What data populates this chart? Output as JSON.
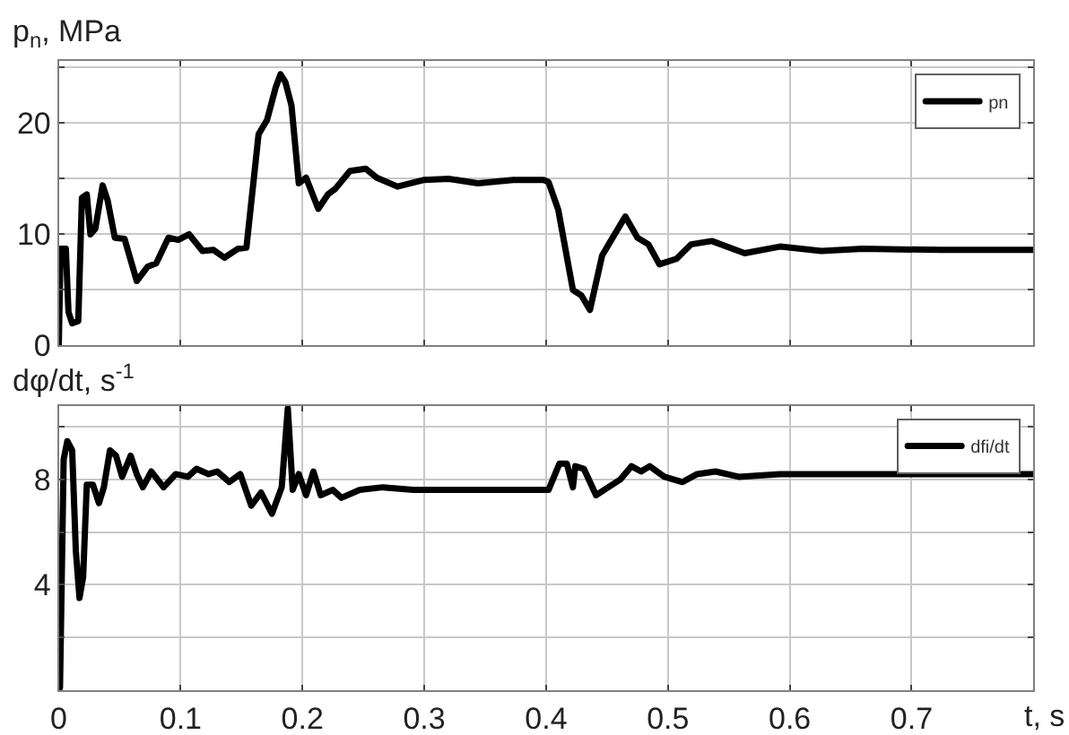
{
  "chart_data": [
    {
      "type": "line",
      "ylabel": "p$_{n}$, MPa",
      "xlim": [
        0,
        0.8
      ],
      "ylim": [
        0,
        25.6
      ],
      "tick_labels": "y",
      "grid": true,
      "legend": "top right",
      "line_style": "solid",
      "marker": "none",
      "xticks": [
        0,
        0.1,
        0.2,
        0.3,
        0.4,
        0.5,
        0.6,
        0.7
      ],
      "yticks": [
        0,
        {
          "value": 5,
          "label": null
        },
        10,
        {
          "value": 15,
          "label": null
        },
        20,
        {
          "value": 25,
          "label": null
        }
      ],
      "x": [
        0,
        0.0015,
        0.0058,
        0.008,
        0.011,
        0.016,
        0.019,
        0.023,
        0.026,
        0.03,
        0.036,
        0.04,
        0.046,
        0.054,
        0.064,
        0.073,
        0.08,
        0.09,
        0.098,
        0.107,
        0.118,
        0.127,
        0.136,
        0.147,
        0.154,
        0.164,
        0.171,
        0.178,
        0.182,
        0.186,
        0.191,
        0.197,
        0.203,
        0.213,
        0.221,
        0.227,
        0.239,
        0.252,
        0.261,
        0.278,
        0.3,
        0.32,
        0.344,
        0.373,
        0.398,
        0.402,
        0.41,
        0.422,
        0.429,
        0.436,
        0.446,
        0.453,
        0.465,
        0.475,
        0.484,
        0.493,
        0.507,
        0.519,
        0.536,
        0.563,
        0.592,
        0.626,
        0.66,
        0.724,
        0.8
      ],
      "series": [
        {
          "name": "pn",
          "color": "#000000",
          "values": [
            0,
            8.7,
            8.7,
            3,
            2,
            2.2,
            13.3,
            13.6,
            10,
            10.5,
            14.4,
            13.1,
            9.7,
            9.6,
            5.8,
            7.1,
            7.4,
            9.7,
            9.5,
            10,
            8.5,
            8.6,
            7.9,
            8.7,
            8.8,
            19,
            20.3,
            23.2,
            24.4,
            23.7,
            21.6,
            14.6,
            15.1,
            12.3,
            13.6,
            14.1,
            15.7,
            15.9,
            15.1,
            14.3,
            14.9,
            15.0,
            14.6,
            14.9,
            14.9,
            14.7,
            12.2,
            5.0,
            4.5,
            3.2,
            8.1,
            9.4,
            11.6,
            9.7,
            9.1,
            7.3,
            7.8,
            9.1,
            9.4,
            8.3,
            8.9,
            8.5,
            8.7,
            8.6,
            8.6
          ]
        }
      ]
    },
    {
      "type": "line",
      "ylabel": "dφ/dt, s$^{-1}$",
      "xlabel": "t, s",
      "xlim": [
        0,
        0.8
      ],
      "ylim": [
        0,
        10.8
      ],
      "grid": true,
      "legend": "top right",
      "line_style": "solid",
      "marker": "none",
      "xticks": [
        0,
        0.1,
        0.2,
        0.3,
        0.4,
        0.5,
        0.6,
        0.7
      ],
      "yticks": [
        {
          "value": 2,
          "label": null
        },
        4,
        {
          "value": 6,
          "label": null
        },
        8,
        {
          "value": 10,
          "label": null
        }
      ],
      "x": [
        0.001,
        0.004,
        0.007,
        0.011,
        0.014,
        0.017,
        0.02,
        0.023,
        0.028,
        0.033,
        0.037,
        0.042,
        0.047,
        0.052,
        0.059,
        0.064,
        0.069,
        0.076,
        0.086,
        0.096,
        0.106,
        0.113,
        0.123,
        0.13,
        0.14,
        0.149,
        0.158,
        0.166,
        0.175,
        0.183,
        0.188,
        0.192,
        0.197,
        0.203,
        0.209,
        0.215,
        0.225,
        0.232,
        0.247,
        0.266,
        0.291,
        0.339,
        0.398,
        0.402,
        0.411,
        0.417,
        0.422,
        0.424,
        0.431,
        0.441,
        0.451,
        0.461,
        0.47,
        0.478,
        0.485,
        0.497,
        0.512,
        0.524,
        0.539,
        0.558,
        0.592,
        0.675,
        0.8
      ],
      "series": [
        {
          "name": "dfi/dt",
          "color": "#000000",
          "values": [
            0.1,
            8.75,
            9.45,
            9.1,
            5.3,
            3.5,
            4.3,
            7.8,
            7.8,
            7.1,
            7.7,
            9.1,
            8.9,
            8.1,
            8.9,
            8.2,
            7.7,
            8.3,
            7.7,
            8.2,
            8.1,
            8.4,
            8.2,
            8.3,
            7.9,
            8.2,
            7.0,
            7.5,
            6.7,
            7.7,
            10.7,
            7.6,
            8.2,
            7.4,
            8.3,
            7.4,
            7.6,
            7.3,
            7.6,
            7.7,
            7.6,
            7.6,
            7.6,
            7.6,
            8.6,
            8.6,
            7.7,
            8.5,
            8.4,
            7.4,
            7.7,
            8.0,
            8.5,
            8.3,
            8.5,
            8.1,
            7.9,
            8.2,
            8.3,
            8.1,
            8.2,
            8.2,
            8.2
          ]
        }
      ]
    }
  ]
}
